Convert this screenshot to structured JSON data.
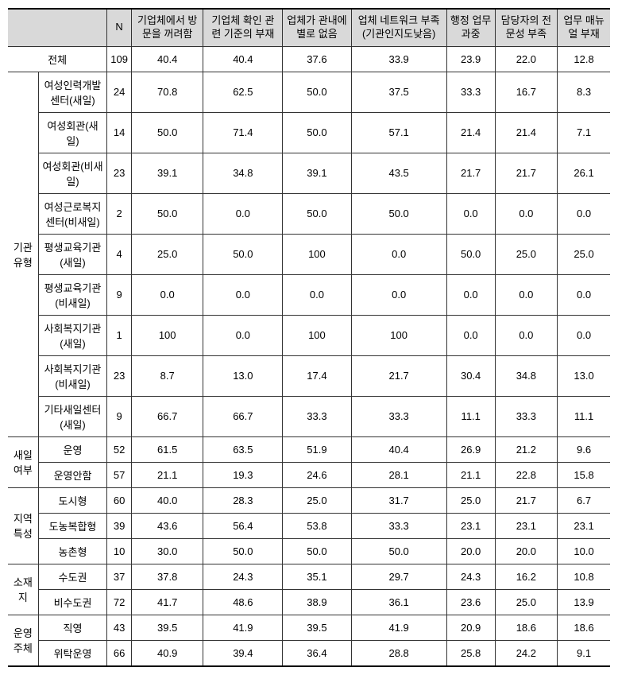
{
  "header": {
    "col_n": "N",
    "col1": "기업체에서 방문을 꺼려함",
    "col2": "기업체 확인 관련 기준의 부재",
    "col3": "업체가 관내에 별로 없음",
    "col4": "업체 네트워크 부족 (기관인지도낮음)",
    "col5": "행정 업무 과중",
    "col6": "담당자의 전문성 부족",
    "col7": "업무 매뉴얼 부재"
  },
  "groups": {
    "total": "전체",
    "org_type": "기관유형",
    "saeil": "새일여부",
    "region": "지역특성",
    "location": "소재지",
    "operator": "운영주체"
  },
  "rows": {
    "total": {
      "label": "전체",
      "n": "109",
      "v1": "40.4",
      "v2": "40.4",
      "v3": "37.6",
      "v4": "33.9",
      "v5": "23.9",
      "v6": "22.0",
      "v7": "12.8"
    },
    "org1": {
      "label": "여성인력개발센터(새일)",
      "n": "24",
      "v1": "70.8",
      "v2": "62.5",
      "v3": "50.0",
      "v4": "37.5",
      "v5": "33.3",
      "v6": "16.7",
      "v7": "8.3"
    },
    "org2": {
      "label": "여성회관(새일)",
      "n": "14",
      "v1": "50.0",
      "v2": "71.4",
      "v3": "50.0",
      "v4": "57.1",
      "v5": "21.4",
      "v6": "21.4",
      "v7": "7.1"
    },
    "org3": {
      "label": "여성회관(비새일)",
      "n": "23",
      "v1": "39.1",
      "v2": "34.8",
      "v3": "39.1",
      "v4": "43.5",
      "v5": "21.7",
      "v6": "21.7",
      "v7": "26.1"
    },
    "org4": {
      "label": "여성근로복지센터(비새일)",
      "n": "2",
      "v1": "50.0",
      "v2": "0.0",
      "v3": "50.0",
      "v4": "50.0",
      "v5": "0.0",
      "v6": "0.0",
      "v7": "0.0"
    },
    "org5": {
      "label": "평생교육기관(새일)",
      "n": "4",
      "v1": "25.0",
      "v2": "50.0",
      "v3": "100",
      "v4": "0.0",
      "v5": "50.0",
      "v6": "25.0",
      "v7": "25.0"
    },
    "org6": {
      "label": "평생교육기관(비새일)",
      "n": "9",
      "v1": "0.0",
      "v2": "0.0",
      "v3": "0.0",
      "v4": "0.0",
      "v5": "0.0",
      "v6": "0.0",
      "v7": "0.0"
    },
    "org7": {
      "label": "사회복지기관(새일)",
      "n": "1",
      "v1": "100",
      "v2": "0.0",
      "v3": "100",
      "v4": "100",
      "v5": "0.0",
      "v6": "0.0",
      "v7": "0.0"
    },
    "org8": {
      "label": "사회복지기관(비새일)",
      "n": "23",
      "v1": "8.7",
      "v2": "13.0",
      "v3": "17.4",
      "v4": "21.7",
      "v5": "30.4",
      "v6": "34.8",
      "v7": "13.0"
    },
    "org9": {
      "label": "기타새일센터(새일)",
      "n": "9",
      "v1": "66.7",
      "v2": "66.7",
      "v3": "33.3",
      "v4": "33.3",
      "v5": "11.1",
      "v6": "33.3",
      "v7": "11.1"
    },
    "saeil1": {
      "label": "운영",
      "n": "52",
      "v1": "61.5",
      "v2": "63.5",
      "v3": "51.9",
      "v4": "40.4",
      "v5": "26.9",
      "v6": "21.2",
      "v7": "9.6"
    },
    "saeil2": {
      "label": "운영안함",
      "n": "57",
      "v1": "21.1",
      "v2": "19.3",
      "v3": "24.6",
      "v4": "28.1",
      "v5": "21.1",
      "v6": "22.8",
      "v7": "15.8"
    },
    "reg1": {
      "label": "도시형",
      "n": "60",
      "v1": "40.0",
      "v2": "28.3",
      "v3": "25.0",
      "v4": "31.7",
      "v5": "25.0",
      "v6": "21.7",
      "v7": "6.7"
    },
    "reg2": {
      "label": "도농복합형",
      "n": "39",
      "v1": "43.6",
      "v2": "56.4",
      "v3": "53.8",
      "v4": "33.3",
      "v5": "23.1",
      "v6": "23.1",
      "v7": "23.1"
    },
    "reg3": {
      "label": "농촌형",
      "n": "10",
      "v1": "30.0",
      "v2": "50.0",
      "v3": "50.0",
      "v4": "50.0",
      "v5": "20.0",
      "v6": "20.0",
      "v7": "10.0"
    },
    "loc1": {
      "label": "수도권",
      "n": "37",
      "v1": "37.8",
      "v2": "24.3",
      "v3": "35.1",
      "v4": "29.7",
      "v5": "24.3",
      "v6": "16.2",
      "v7": "10.8"
    },
    "loc2": {
      "label": "비수도권",
      "n": "72",
      "v1": "41.7",
      "v2": "48.6",
      "v3": "38.9",
      "v4": "36.1",
      "v5": "23.6",
      "v6": "25.0",
      "v7": "13.9"
    },
    "op1": {
      "label": "직영",
      "n": "43",
      "v1": "39.5",
      "v2": "41.9",
      "v3": "39.5",
      "v4": "41.9",
      "v5": "20.9",
      "v6": "18.6",
      "v7": "18.6"
    },
    "op2": {
      "label": "위탁운영",
      "n": "66",
      "v1": "40.9",
      "v2": "39.4",
      "v3": "36.4",
      "v4": "28.8",
      "v5": "25.8",
      "v6": "24.2",
      "v7": "9.1"
    }
  },
  "styles": {
    "header_bg": "#d9d9d9",
    "border_color": "#333333",
    "font_size": 13
  }
}
